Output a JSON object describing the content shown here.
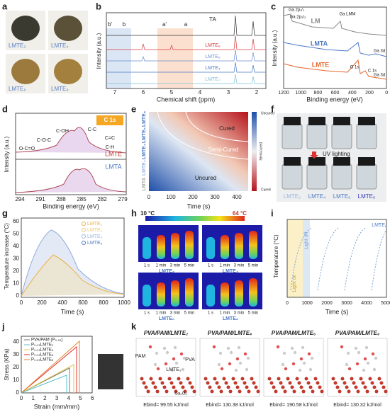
{
  "figure": {
    "panels": {
      "a": {
        "label": "a",
        "samples": [
          "LMTE₂",
          "LMTE₄",
          "LMTE₆",
          "LMTE₈"
        ]
      },
      "b": {
        "label": "b",
        "ylabel": "Intensity (a.u.)",
        "xlabel": "Chemical shift (ppm)",
        "xticks": [
          "7",
          "6",
          "5",
          "4",
          "3",
          "2"
        ],
        "peaks": [
          "b'",
          "b",
          "a'",
          "a",
          "TA"
        ],
        "series": [
          "LMTE₈",
          "LMTE₆",
          "LMTE₄",
          "LMTE₂"
        ]
      },
      "c": {
        "label": "c",
        "ylabel": "Intensity (a.u.)",
        "xlabel": "Binding energy (eV)",
        "xticks": [
          "1200",
          "1000",
          "800",
          "600",
          "400",
          "200",
          "0"
        ],
        "peaks": [
          "Ga 2p₁/₂",
          "Ga 2p₃/₂",
          "Ga LMM",
          "O 1s",
          "C 1s",
          "Ga 3d",
          "Ga 3d"
        ],
        "series": [
          "LM",
          "LMTA",
          "LMTE"
        ]
      },
      "d": {
        "label": "d",
        "ylabel": "Intensity (a.u.)",
        "xlabel": "Binding energy (eV)",
        "xticks": [
          "294",
          "291",
          "288",
          "285",
          "282",
          "279"
        ],
        "badge": "C 1s",
        "peaks": [
          "C-C",
          "C-OH",
          "C=C",
          "C-O-C",
          "C-H",
          "O-C=O"
        ],
        "series": [
          "LMTE",
          "LMTA"
        ]
      },
      "e": {
        "label": "e",
        "xlabel": "Time (s)",
        "xticks": [
          "0",
          "100",
          "200",
          "300",
          "400"
        ],
        "rows": [
          "LMTE₈",
          "LMTE₆",
          "LMTE₄",
          "LMTE₂",
          "LMTA"
        ],
        "regions": [
          "Cured",
          "Semi-Cured",
          "Uncured"
        ],
        "colorbar": [
          "Uncured",
          "Semi-cured",
          "Cured"
        ]
      },
      "f": {
        "label": "f",
        "arrow": "UV lighting",
        "samples": [
          "LMTE₂",
          "LMTE₄",
          "LMTE₆",
          "LMTE₈"
        ]
      },
      "g": {
        "label": "g",
        "ylabel": "Temperature increase (°C)",
        "xlabel": "Time (s)",
        "yticks": [
          "0",
          "10",
          "20",
          "30",
          "40",
          "50",
          "60"
        ],
        "xticks": [
          "0",
          "200",
          "400",
          "600",
          "800",
          "1000"
        ],
        "legend": [
          "LMTE₂",
          "LMTE₄",
          "LMTE₆",
          "LMTE₈"
        ]
      },
      "h": {
        "label": "h",
        "scale": [
          "10 °C",
          "64 °C"
        ],
        "times": [
          "1 s",
          "1 min",
          "3 min",
          "5 min"
        ],
        "samples": [
          "LMTE₂",
          "LMTE₄",
          "LMTE₆",
          "LMTE₈"
        ]
      },
      "i": {
        "label": "i",
        "ylabel": "Temperature (°C)",
        "xlabel": "Time (s)",
        "xticks": [
          "0",
          "1000",
          "2000",
          "3000",
          "4000",
          "5000"
        ],
        "notes": [
          "Light off",
          "Light on",
          "LMTE₈"
        ]
      },
      "j": {
        "label": "j",
        "ylabel": "Stress (KPa)",
        "xlabel": "Strain (mm/mm)",
        "yticks": [
          "0",
          "10",
          "20",
          "30",
          "40"
        ],
        "xticks": [
          "0",
          "1",
          "2",
          "3",
          "4",
          "5",
          "6"
        ],
        "legend": [
          "PVA/PAM (P₀.₂₅)",
          "P₀.₂₅LMTE₂",
          "P₀.₂₅LMTE₄",
          "P₀.₂₅LMTE₆",
          "P₀.₂₅LMTE₈"
        ]
      },
      "k": {
        "label": "k",
        "titles": [
          "PVA/PAM/LMTE₂",
          "PVA/PAM/LMTE₄",
          "PVA/PAM/LMTE₆",
          "PVA/PAM/LMTE₈"
        ],
        "parts": [
          "PVA",
          "PAM",
          "LMTE₂",
          "Ga₂O₃"
        ],
        "energies": [
          "Ebind= 99.55 kJ/mol",
          "Ebind= 130.38 kJ/mol",
          "Ebind= 190.58 kJ/mol",
          "Ebind= 130.32 kJ/mol"
        ]
      }
    }
  }
}
